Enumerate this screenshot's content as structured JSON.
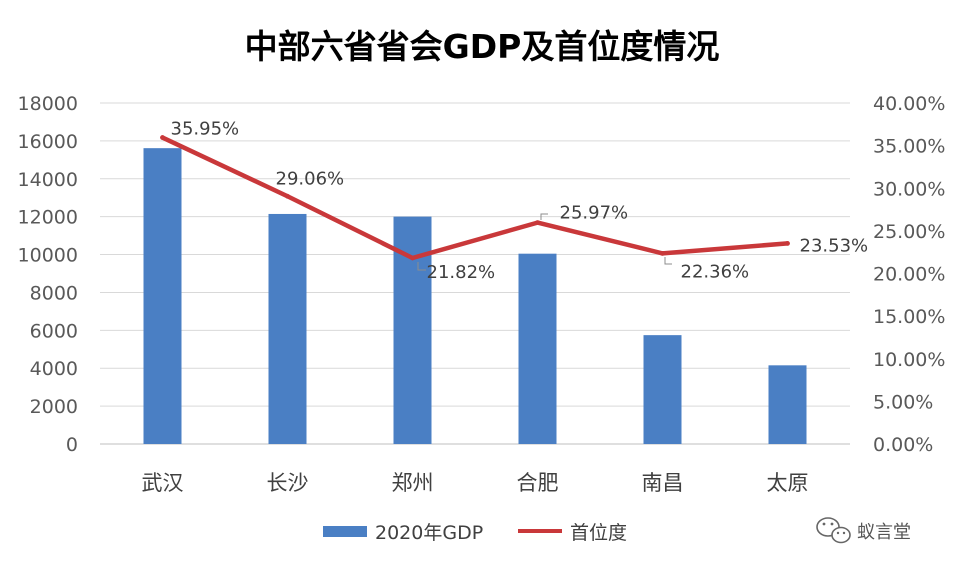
{
  "chart_data": {
    "type": "bar+line",
    "title": "中部六省省会GDP及首位度情况",
    "categories": [
      "武汉",
      "长沙",
      "郑州",
      "合肥",
      "南昌",
      "太原"
    ],
    "series": [
      {
        "name": "2020年GDP",
        "type": "bar",
        "axis": "left",
        "color": "#4a7fc4",
        "values": [
          15616,
          12143,
          12003,
          10046,
          5746,
          4153
        ]
      },
      {
        "name": "首位度",
        "type": "line",
        "axis": "right",
        "color": "#c9383a",
        "values": [
          35.95,
          29.06,
          21.82,
          25.97,
          22.36,
          23.53
        ],
        "labels": [
          "35.95%",
          "29.06%",
          "21.82%",
          "25.97%",
          "22.36%",
          "23.53%"
        ]
      }
    ],
    "left_axis": {
      "ylim": [
        0,
        18000
      ],
      "ticks": [
        "0",
        "2000",
        "4000",
        "6000",
        "8000",
        "10000",
        "12000",
        "14000",
        "16000",
        "18000"
      ]
    },
    "right_axis": {
      "ylim": [
        0,
        40
      ],
      "ticks": [
        "0.00%",
        "5.00%",
        "10.00%",
        "15.00%",
        "20.00%",
        "25.00%",
        "30.00%",
        "35.00%",
        "40.00%"
      ]
    },
    "grid": true,
    "legend_position": "bottom"
  },
  "watermark": {
    "icon": "wechat-icon",
    "text": "蚁言堂"
  }
}
